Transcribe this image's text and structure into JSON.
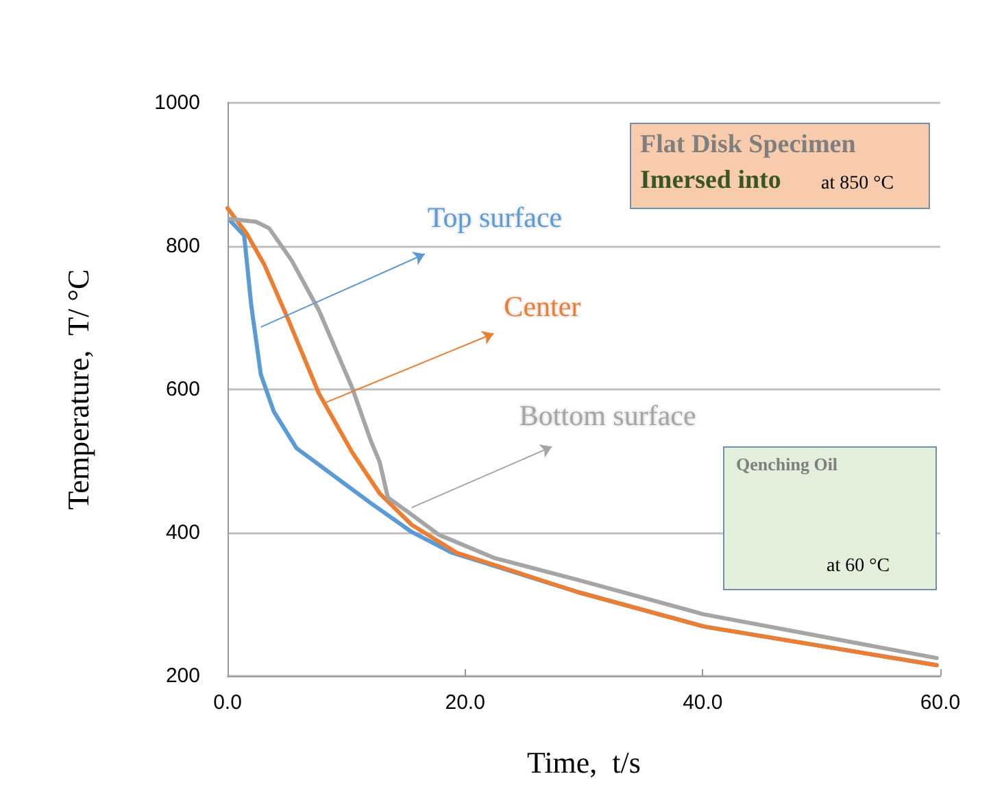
{
  "chart_data": {
    "type": "line",
    "xlabel": "Time,  t/s",
    "ylabel": "Temperature,  T/ °C",
    "xlim": [
      0,
      60
    ],
    "xticks": [
      {
        "value": 0,
        "label": "0.0"
      },
      {
        "value": 20,
        "label": "20.0"
      },
      {
        "value": 40,
        "label": "40.0"
      },
      {
        "value": 60,
        "label": "60.0"
      }
    ],
    "ylim": [
      200,
      1000
    ],
    "yticks": [
      200,
      400,
      600,
      800,
      1000
    ],
    "grid": "y",
    "marker": "none",
    "line_style": "solid",
    "annotations": [
      "Flat Disk Specimen",
      "Imersed into",
      "at 850 °C",
      "Qenching Oil",
      "at 60 °C"
    ],
    "series": [
      {
        "name": "Top surface",
        "color": "#5b9bd5",
        "x": [
          0.2,
          1.4,
          2.0,
          2.8,
          3.9,
          5.8,
          8.9,
          12,
          15.5,
          18.9,
          29.5,
          40.1,
          59.7
        ],
        "values": [
          836,
          815,
          717,
          621,
          569,
          518,
          480,
          442,
          401,
          372,
          317,
          269,
          215
        ]
      },
      {
        "name": "Center",
        "color": "#ed7d31",
        "x": [
          0,
          1.6,
          3.1,
          5.1,
          7.7,
          10.5,
          12.8,
          15.5,
          19.3,
          29.5,
          40.1,
          59.7
        ],
        "values": [
          853,
          818,
          774,
          698,
          594,
          512,
          455,
          411,
          372,
          317,
          269,
          215
        ]
      },
      {
        "name": "Bottom surface",
        "color": "#a5a5a5",
        "x": [
          0.2,
          2.4,
          3.5,
          5.4,
          7.7,
          10.5,
          12,
          12.8,
          13.5,
          15.1,
          17.8,
          22.4,
          29.5,
          40.1,
          59.7
        ],
        "values": [
          838,
          834,
          825,
          780,
          710,
          602,
          531,
          499,
          449,
          430,
          397,
          365,
          334,
          286,
          225
        ]
      }
    ]
  }
}
